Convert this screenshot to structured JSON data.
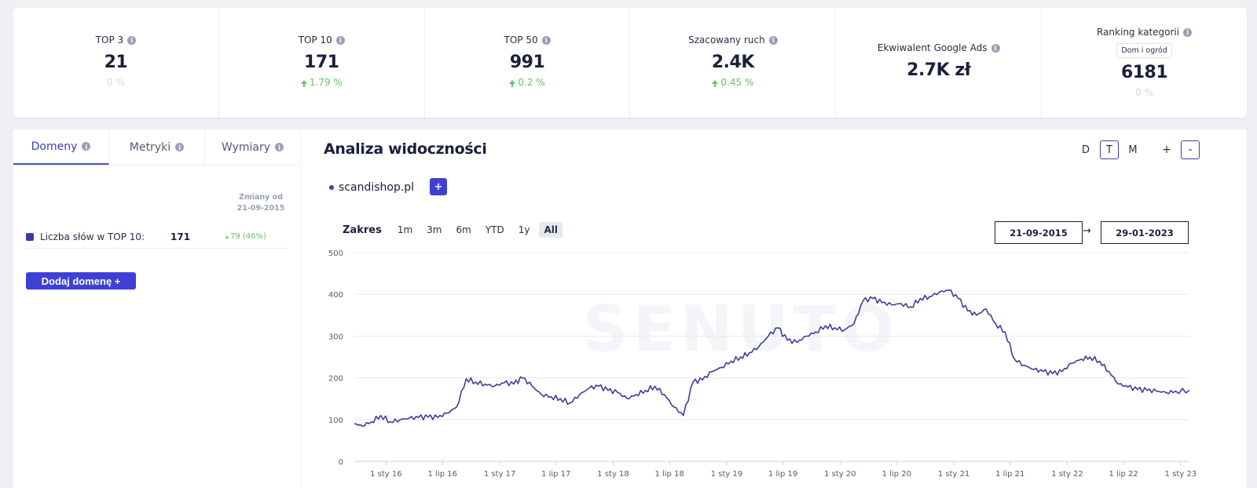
{
  "stats": [
    {
      "label": "TOP 3",
      "value": "21",
      "change": "0 %",
      "trend": "neutral"
    },
    {
      "label": "TOP 10",
      "value": "171",
      "change": "1.79 %",
      "trend": "up"
    },
    {
      "label": "TOP 50",
      "value": "991",
      "change": "0.2 %",
      "trend": "up"
    },
    {
      "label": "Szacowany ruch",
      "value": "2.4K",
      "change": "0.45 %",
      "trend": "up"
    },
    {
      "label": "Ekwiwalent Google Ads",
      "value": "2.7K zł"
    },
    {
      "label": "Ranking kategorii",
      "tag": "Dom i ogród",
      "value": "6181",
      "change": "0 %",
      "trend": "neutral"
    }
  ],
  "left_panel": {
    "tabs": [
      {
        "label": "Domeny",
        "active": true
      },
      {
        "label": "Metryki",
        "active": false
      },
      {
        "label": "Wymiary",
        "active": false
      }
    ],
    "changes_header_line1": "Zmiany od",
    "changes_header_line2": "21-09-2015",
    "metric": {
      "label": "Liczba słów w TOP 10:",
      "value": "171",
      "change": "79 (46%)"
    },
    "add_domain_label": "Dodaj domenę +"
  },
  "main": {
    "title": "Analiza widoczności",
    "periods": [
      {
        "label": "D",
        "active": false
      },
      {
        "label": "T",
        "active": true
      },
      {
        "label": "M",
        "active": false
      }
    ],
    "zoom": [
      {
        "label": "+",
        "active": false
      },
      {
        "label": "-",
        "active": true
      }
    ],
    "domain": "scandishop.pl",
    "add_series_label": "+",
    "range_label": "Zakres",
    "ranges": [
      {
        "label": "1m",
        "active": false
      },
      {
        "label": "3m",
        "active": false
      },
      {
        "label": "6m",
        "active": false
      },
      {
        "label": "YTD",
        "active": false
      },
      {
        "label": "1y",
        "active": false
      },
      {
        "label": "All",
        "active": true
      }
    ],
    "date_from": "21-09-2015",
    "date_arrow": "→",
    "date_to": "29-01-2023",
    "watermark": "SENUTO"
  },
  "colors": {
    "accent": "#3f3fd6",
    "line": "#3b3e9c",
    "positive": "#5fc46a"
  },
  "chart_data": {
    "type": "line",
    "series": [
      {
        "name": "scandishop.pl",
        "x": [
          "2015-09-21",
          "2015-10-15",
          "2015-11-15",
          "2015-12-15",
          "2016-01-15",
          "2016-02-15",
          "2016-03-15",
          "2016-04-15",
          "2016-05-15",
          "2016-06-15",
          "2016-07-15",
          "2016-08-15",
          "2016-09-15",
          "2016-10-15",
          "2016-11-15",
          "2016-12-15",
          "2017-01-15",
          "2017-02-15",
          "2017-03-15",
          "2017-04-15",
          "2017-05-15",
          "2017-06-15",
          "2017-07-15",
          "2017-08-15",
          "2017-09-15",
          "2017-10-15",
          "2017-11-15",
          "2017-12-15",
          "2018-01-15",
          "2018-02-15",
          "2018-03-15",
          "2018-04-15",
          "2018-05-15",
          "2018-06-15",
          "2018-07-15",
          "2018-08-15",
          "2018-09-15",
          "2018-10-15",
          "2018-11-15",
          "2018-12-15",
          "2019-01-15",
          "2019-02-15",
          "2019-03-15",
          "2019-04-15",
          "2019-05-15",
          "2019-06-15",
          "2019-07-15",
          "2019-08-15",
          "2019-09-15",
          "2019-10-15",
          "2019-11-15",
          "2019-12-15",
          "2020-01-15",
          "2020-02-15",
          "2020-03-15",
          "2020-04-15",
          "2020-05-15",
          "2020-06-15",
          "2020-07-15",
          "2020-08-15",
          "2020-09-15",
          "2020-10-15",
          "2020-11-15",
          "2020-12-15",
          "2021-01-15",
          "2021-02-15",
          "2021-03-15",
          "2021-04-15",
          "2021-05-15",
          "2021-06-15",
          "2021-07-15",
          "2021-08-15",
          "2021-09-15",
          "2021-10-15",
          "2021-11-15",
          "2021-12-15",
          "2022-01-15",
          "2022-02-15",
          "2022-03-15",
          "2022-04-15",
          "2022-05-15",
          "2022-06-15",
          "2022-07-15",
          "2022-08-15",
          "2022-09-15",
          "2022-10-15",
          "2022-11-15",
          "2022-12-15",
          "2023-01-29"
        ],
        "values": [
          90,
          85,
          95,
          110,
          95,
          100,
          103,
          105,
          106,
          105,
          115,
          130,
          198,
          190,
          185,
          180,
          188,
          185,
          200,
          180,
          160,
          155,
          150,
          140,
          160,
          175,
          180,
          170,
          165,
          150,
          160,
          170,
          180,
          160,
          130,
          110,
          190,
          195,
          215,
          225,
          240,
          250,
          260,
          275,
          300,
          320,
          290,
          285,
          300,
          310,
          325,
          320,
          315,
          330,
          385,
          390,
          380,
          375,
          378,
          370,
          390,
          395,
          405,
          410,
          390,
          360,
          350,
          365,
          330,
          310,
          245,
          230,
          220,
          215,
          210,
          215,
          235,
          245,
          250,
          240,
          215,
          185,
          178,
          172,
          170,
          168,
          165,
          168,
          170
        ]
      }
    ],
    "xticks": [
      "1 sty 16",
      "1 lip 16",
      "1 sty 17",
      "1 lip 17",
      "1 sty 18",
      "1 lip 18",
      "1 sty 19",
      "1 lip 19",
      "1 sty 20",
      "1 lip 20",
      "1 sty 21",
      "1 lip 21",
      "1 sty 22",
      "1 lip 22",
      "1 sty 23"
    ],
    "yticks": [
      "0",
      "100",
      "200",
      "300",
      "400",
      "500"
    ],
    "ylim": [
      0,
      500
    ],
    "grid": true
  }
}
